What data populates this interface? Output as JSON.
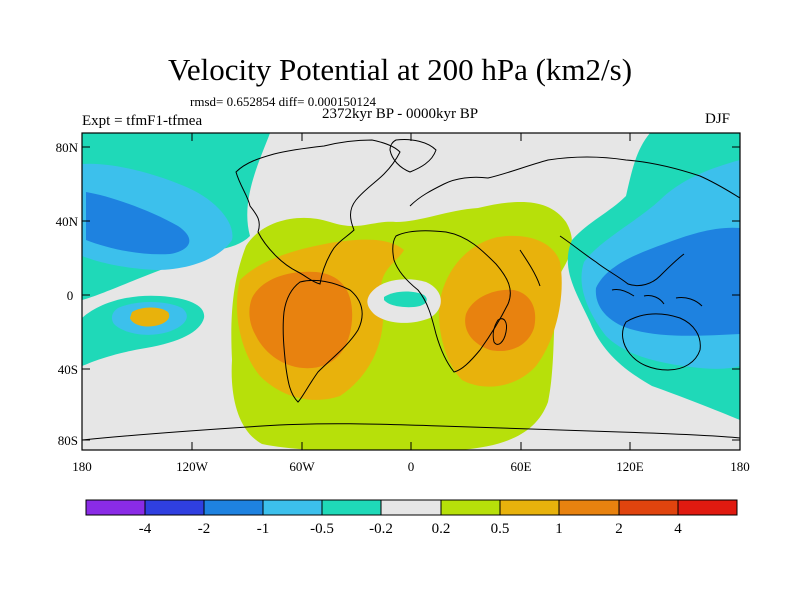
{
  "title": "Velocity Potential at 200 hPa (km2/s)",
  "stats": "rmsd= 0.652854 diff= 0.000150124",
  "left_label": "Expt = tfmF1-tfmea",
  "center_label": "2372kyr BP - 0000kyr BP",
  "right_label": "DJF",
  "lat_labels": [
    "80N",
    "40N",
    "0",
    "40S",
    "80S"
  ],
  "lon_labels": [
    "180",
    "120W",
    "60W",
    "0",
    "60E",
    "120E",
    "180"
  ],
  "colorbar": {
    "colors": [
      "#8a2be6",
      "#2f3fe0",
      "#1e82e0",
      "#3cc0ec",
      "#1fd9b8",
      "#e6e6e6",
      "#b7e00a",
      "#e8b20c",
      "#e8820f",
      "#e0440e",
      "#e01a10"
    ],
    "labels": [
      "-4",
      "-2",
      "-1",
      "-0.5",
      "-0.2",
      "0.2",
      "0.5",
      "1",
      "2",
      "4"
    ]
  },
  "palette": {
    "neg_strong": "#1e82e0",
    "neg_mid": "#3cc0ec",
    "neg_weak": "#1fd9b8",
    "neutral": "#e6e6e6",
    "pos_weak": "#b7e00a",
    "pos_mid": "#e8b20c",
    "pos_strong": "#e8820f"
  }
}
